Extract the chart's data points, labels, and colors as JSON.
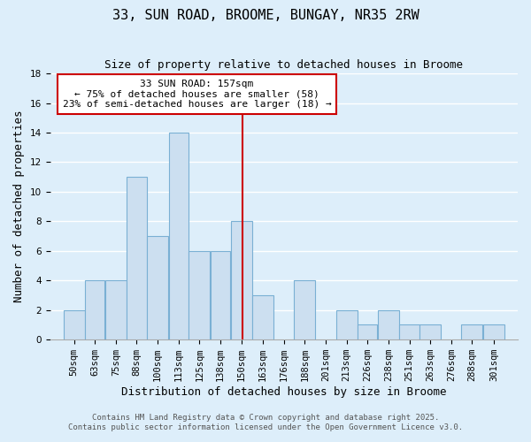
{
  "title": "33, SUN ROAD, BROOME, BUNGAY, NR35 2RW",
  "subtitle": "Size of property relative to detached houses in Broome",
  "xlabel": "Distribution of detached houses by size in Broome",
  "ylabel": "Number of detached properties",
  "bin_labels": [
    "50sqm",
    "63sqm",
    "75sqm",
    "88sqm",
    "100sqm",
    "113sqm",
    "125sqm",
    "138sqm",
    "150sqm",
    "163sqm",
    "176sqm",
    "188sqm",
    "201sqm",
    "213sqm",
    "226sqm",
    "238sqm",
    "251sqm",
    "263sqm",
    "276sqm",
    "288sqm",
    "301sqm"
  ],
  "bin_edges": [
    50,
    63,
    75,
    88,
    100,
    113,
    125,
    138,
    150,
    163,
    176,
    188,
    201,
    213,
    226,
    238,
    251,
    263,
    276,
    288,
    301,
    314
  ],
  "counts": [
    2,
    4,
    4,
    11,
    7,
    14,
    6,
    6,
    8,
    3,
    0,
    4,
    0,
    2,
    1,
    2,
    1,
    1,
    0,
    1,
    1
  ],
  "bar_facecolor": "#ccdff0",
  "bar_edgecolor": "#7ab0d4",
  "background_color": "#ddeefa",
  "grid_color": "#ffffff",
  "vline_x": 157,
  "vline_color": "#cc0000",
  "annotation_line1": "33 SUN ROAD: 157sqm",
  "annotation_line2": "← 75% of detached houses are smaller (58)",
  "annotation_line3": "23% of semi-detached houses are larger (18) →",
  "annotation_box_edgecolor": "#cc0000",
  "annotation_box_facecolor": "#ffffff",
  "ylim": [
    0,
    18
  ],
  "yticks": [
    0,
    2,
    4,
    6,
    8,
    10,
    12,
    14,
    16,
    18
  ],
  "footer_line1": "Contains HM Land Registry data © Crown copyright and database right 2025.",
  "footer_line2": "Contains public sector information licensed under the Open Government Licence v3.0.",
  "title_fontsize": 11,
  "subtitle_fontsize": 9,
  "axis_label_fontsize": 9,
  "tick_fontsize": 7.5,
  "annotation_fontsize": 8,
  "footer_fontsize": 6.5
}
